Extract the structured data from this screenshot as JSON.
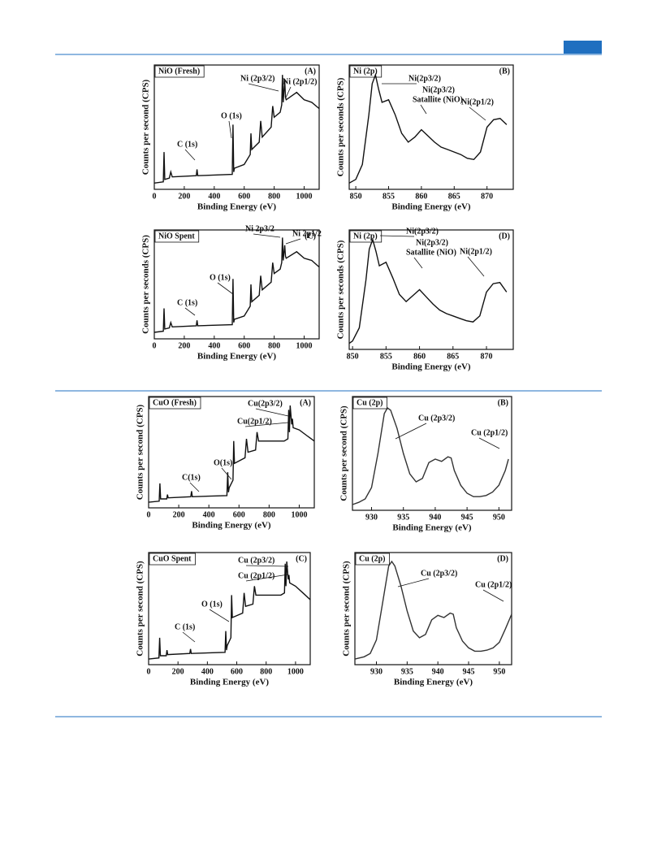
{
  "chart_data": [
    {
      "type": "line",
      "label": "NiO (Fresh)",
      "panel": "(A)",
      "xlabel": "Binding Energy (eV)",
      "ylabel": "Counts per second (CPS)",
      "x": [
        0,
        60,
        65,
        70,
        100,
        110,
        120,
        280,
        285,
        290,
        520,
        525,
        530,
        535,
        600,
        640,
        645,
        650,
        700,
        710,
        720,
        780,
        790,
        800,
        840,
        850,
        855,
        860,
        870,
        875,
        880,
        950,
        1000,
        1050,
        1100
      ],
      "values": [
        5,
        6,
        30,
        8,
        9,
        14,
        10,
        11,
        16,
        11,
        12,
        52,
        14,
        17,
        20,
        28,
        45,
        32,
        38,
        55,
        42,
        50,
        67,
        58,
        62,
        68,
        92,
        70,
        88,
        74,
        72,
        78,
        72,
        70,
        65
      ],
      "color": "#111",
      "xlim": [
        0,
        1100
      ],
      "xticks": [
        0,
        200,
        400,
        600,
        800,
        1000
      ],
      "ylim": [
        0,
        100
      ],
      "annotations": [
        "C (1s)",
        "O (1s)",
        "Ni (2p3/2)",
        "Ni (2p1/2)"
      ]
    },
    {
      "type": "line",
      "label": "Ni (2p)",
      "panel": "(B)",
      "xlabel": "Binding Energy (eV)",
      "ylabel": "Counts per seconds (CPS)",
      "x": [
        849,
        850,
        851,
        852,
        852.5,
        853,
        853.5,
        854,
        855,
        856,
        857,
        858,
        859,
        860,
        861,
        862,
        863,
        864,
        865,
        866,
        867,
        868,
        869,
        870,
        871,
        872,
        873
      ],
      "values": [
        5,
        8,
        20,
        60,
        85,
        92,
        80,
        70,
        72,
        60,
        45,
        38,
        42,
        48,
        43,
        38,
        34,
        32,
        30,
        28,
        25,
        24,
        30,
        50,
        56,
        57,
        52
      ],
      "color": "#111",
      "xlim": [
        849,
        874
      ],
      "xticks": [
        850,
        855,
        860,
        865,
        870
      ],
      "ylim": [
        0,
        100
      ],
      "annotations": [
        "Ni(2p3/2)",
        "Ni(2p3/2)",
        "Satallite (NiO)",
        "Ni(2p1/2)"
      ]
    },
    {
      "type": "line",
      "label": "NiO Spent",
      "panel": "(C)",
      "xlabel": "Binding Energy (eV)",
      "ylabel": "Counts per seconds (CPS)",
      "x": [
        0,
        60,
        65,
        70,
        100,
        110,
        120,
        280,
        285,
        290,
        520,
        525,
        530,
        535,
        600,
        640,
        645,
        650,
        700,
        710,
        720,
        780,
        790,
        800,
        840,
        850,
        855,
        860,
        870,
        875,
        880,
        950,
        1000,
        1050,
        1100
      ],
      "values": [
        6,
        7,
        28,
        9,
        10,
        15,
        11,
        12,
        17,
        12,
        13,
        55,
        15,
        18,
        21,
        30,
        50,
        34,
        40,
        58,
        45,
        52,
        70,
        60,
        64,
        70,
        93,
        72,
        86,
        76,
        74,
        80,
        74,
        72,
        66
      ],
      "color": "#111",
      "xlim": [
        0,
        1100
      ],
      "xticks": [
        0,
        200,
        400,
        600,
        800,
        1000
      ],
      "ylim": [
        0,
        100
      ],
      "annotations": [
        "C (1s)",
        "O (1s)",
        "Ni 2p3/2",
        "Ni 2p1/2"
      ]
    },
    {
      "type": "line",
      "label": "Ni (2p)",
      "panel": "(D)",
      "xlabel": "Binding Energy (eV)",
      "ylabel": "Counts per seconds (CPS)",
      "x": [
        849.5,
        850,
        851,
        852,
        852.5,
        853,
        853.5,
        854,
        855,
        856,
        857,
        858,
        859,
        860,
        861,
        862,
        863,
        864,
        865,
        866,
        867,
        868,
        869,
        870,
        871,
        872,
        873
      ],
      "values": [
        5,
        7,
        18,
        58,
        84,
        92,
        82,
        70,
        73,
        60,
        46,
        40,
        45,
        50,
        44,
        38,
        33,
        30,
        28,
        26,
        24,
        23,
        28,
        48,
        55,
        56,
        48
      ],
      "color": "#111",
      "xlim": [
        849.5,
        874
      ],
      "xticks": [
        850,
        855,
        860,
        865,
        870
      ],
      "ylim": [
        0,
        100
      ],
      "annotations": [
        "Ni(2p3/2)",
        "Ni(2p3/2)",
        "Satallite (NiO)",
        "Ni(2p1/2)"
      ]
    },
    {
      "type": "line",
      "label": "CuO (Fresh)",
      "panel": "(A)",
      "xlabel": "Binding Energy (eV)",
      "ylabel": "Counts per second (CPS)",
      "x": [
        0,
        70,
        75,
        80,
        120,
        125,
        130,
        280,
        285,
        290,
        520,
        525,
        530,
        535,
        560,
        565,
        570,
        640,
        650,
        660,
        710,
        720,
        730,
        900,
        925,
        930,
        935,
        940,
        950,
        955,
        960,
        1000,
        1050,
        1100
      ],
      "values": [
        5,
        6,
        22,
        8,
        8,
        12,
        9,
        10,
        15,
        10,
        11,
        32,
        14,
        18,
        25,
        60,
        40,
        45,
        62,
        50,
        52,
        68,
        60,
        60,
        62,
        88,
        68,
        92,
        75,
        80,
        72,
        70,
        65,
        60
      ],
      "color": "#111",
      "xlim": [
        0,
        1100
      ],
      "xticks": [
        0,
        200,
        400,
        600,
        800,
        1000
      ],
      "ylim": [
        0,
        100
      ],
      "annotations": [
        "C(1s)",
        "O(1s)",
        "Cu(2p3/2)",
        "Cu(2p1/2)"
      ]
    },
    {
      "type": "line",
      "label": "Cu (2p)",
      "panel": "(B)",
      "xlabel": "Binding Energy (eV)",
      "ylabel": "Counts per second (CPS)",
      "x": [
        927,
        928,
        929,
        930,
        931,
        932,
        932.5,
        933,
        934,
        935,
        936,
        937,
        938,
        939,
        940,
        941,
        942,
        942.5,
        943,
        944,
        945,
        946,
        947,
        948,
        949,
        950,
        951,
        951.5
      ],
      "values": [
        5,
        7,
        10,
        20,
        50,
        85,
        90,
        88,
        72,
        50,
        32,
        25,
        28,
        42,
        45,
        43,
        47,
        46,
        35,
        22,
        15,
        12,
        12,
        13,
        16,
        22,
        35,
        45
      ],
      "color": "#333",
      "xlim": [
        927,
        952
      ],
      "xticks": [
        930,
        935,
        940,
        945,
        950
      ],
      "ylim": [
        0,
        100
      ],
      "annotations": [
        "Cu (2p3/2)",
        "Cu (2p1/2)"
      ]
    },
    {
      "type": "line",
      "label": "CuO Spent",
      "panel": "(C)",
      "xlabel": "Binding Energy (eV)",
      "ylabel": "Counts per second (CPS)",
      "x": [
        0,
        70,
        75,
        80,
        120,
        125,
        130,
        280,
        285,
        290,
        520,
        525,
        530,
        535,
        560,
        565,
        570,
        640,
        650,
        660,
        710,
        720,
        730,
        900,
        925,
        930,
        935,
        940,
        950,
        955,
        960,
        1000,
        1050,
        1100
      ],
      "values": [
        5,
        6,
        24,
        8,
        8,
        13,
        9,
        10,
        14,
        10,
        11,
        30,
        13,
        17,
        24,
        62,
        42,
        46,
        64,
        52,
        54,
        70,
        62,
        62,
        64,
        90,
        70,
        92,
        76,
        80,
        73,
        70,
        64,
        58
      ],
      "color": "#111",
      "xlim": [
        0,
        1100
      ],
      "xticks": [
        0,
        200,
        400,
        600,
        800,
        1000
      ],
      "ylim": [
        0,
        100
      ],
      "annotations": [
        "C (1s)",
        "O (1s)",
        "Cu (2p3/2)",
        "Cu (2p1/2)"
      ]
    },
    {
      "type": "line",
      "label": "Cu (2p)",
      "panel": "(D)",
      "xlabel": "Binding Energy (eV)",
      "ylabel": "Counts per second (CPS)",
      "x": [
        926.5,
        928,
        929,
        930,
        931,
        932,
        932.5,
        933,
        934,
        935,
        936,
        937,
        938,
        939,
        940,
        941,
        942,
        942.5,
        943,
        944,
        945,
        946,
        947,
        948,
        949,
        950,
        951,
        952
      ],
      "values": [
        5,
        7,
        10,
        22,
        55,
        88,
        92,
        88,
        70,
        48,
        30,
        24,
        27,
        40,
        44,
        42,
        46,
        45,
        33,
        21,
        15,
        12,
        12,
        13,
        15,
        20,
        32,
        45
      ],
      "color": "#333",
      "xlim": [
        926.5,
        952
      ],
      "xticks": [
        930,
        935,
        940,
        945,
        950
      ],
      "ylim": [
        0,
        100
      ],
      "annotations": [
        "Cu (2p3/2)",
        "Cu (2p1/2)"
      ]
    }
  ]
}
